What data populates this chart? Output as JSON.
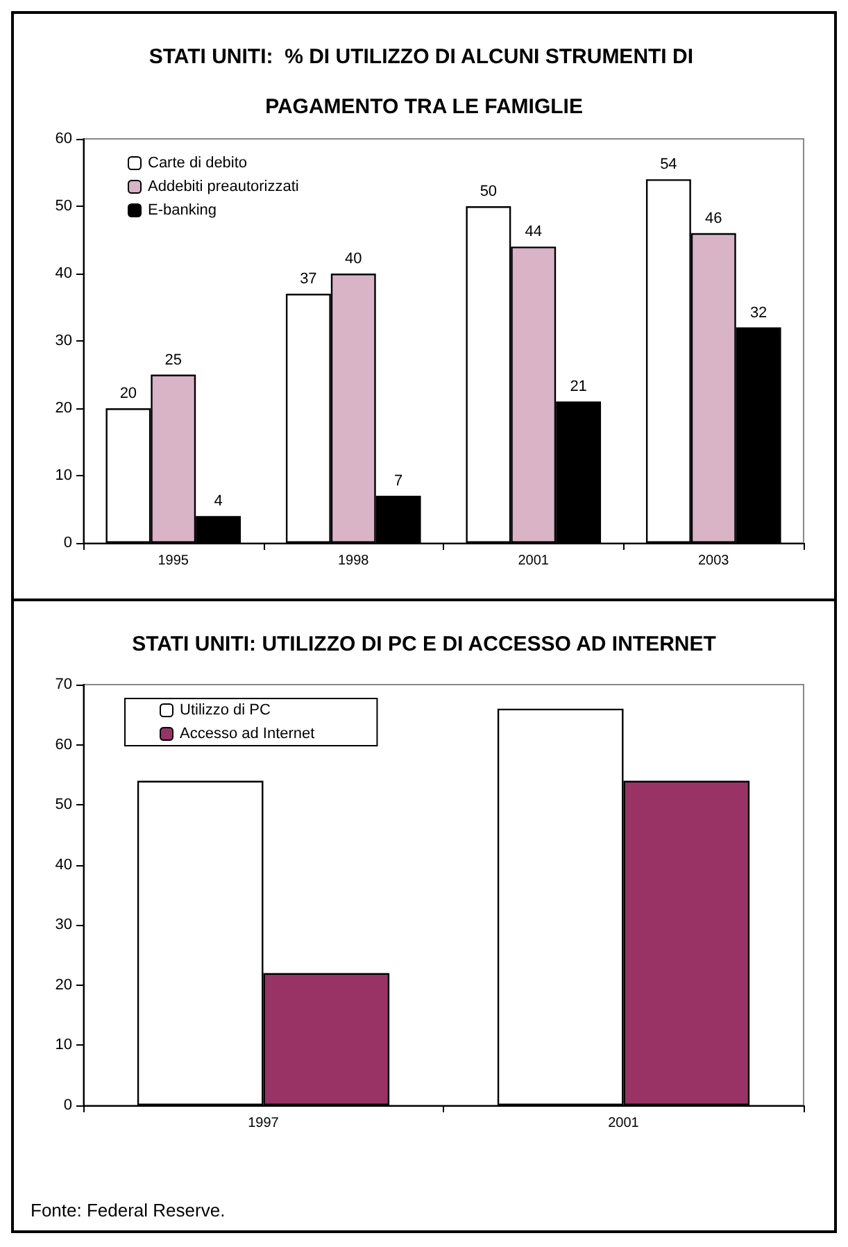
{
  "chart_data": [
    {
      "type": "bar",
      "title": "STATI UNITI:  % DI UTILIZZO DI ALCUNI STRUMENTI DI PAGAMENTO TRA LE FAMIGLIE",
      "categories": [
        "1995",
        "1998",
        "2001",
        "2003"
      ],
      "series": [
        {
          "name": "Carte di debito",
          "color": "#ffffff",
          "values": [
            20,
            37,
            50,
            54
          ]
        },
        {
          "name": "Addebiti preautorizzati",
          "color": "#d9b3c6",
          "values": [
            25,
            40,
            44,
            46
          ]
        },
        {
          "name": "E-banking",
          "color": "#000000",
          "values": [
            4,
            7,
            21,
            32
          ]
        }
      ],
      "ylim": [
        0,
        60
      ],
      "yticks": [
        0,
        10,
        20,
        30,
        40,
        50,
        60
      ],
      "grid": false,
      "legend": "top left",
      "data_labels": true
    },
    {
      "type": "bar",
      "title": "STATI UNITI: UTILIZZO DI PC E DI ACCESSO AD INTERNET",
      "categories": [
        "1997",
        "2001"
      ],
      "series": [
        {
          "name": "Utilizzo di PC",
          "color": "#ffffff",
          "values": [
            54,
            66
          ]
        },
        {
          "name": "Accesso ad Internet",
          "color": "#993366",
          "values": [
            22,
            54
          ]
        }
      ],
      "ylim": [
        0,
        70
      ],
      "yticks": [
        0,
        10,
        20,
        30,
        40,
        50,
        60,
        70
      ],
      "grid": false,
      "legend": "top left",
      "annotations": [
        "Fonte: Federal Reserve."
      ]
    }
  ]
}
